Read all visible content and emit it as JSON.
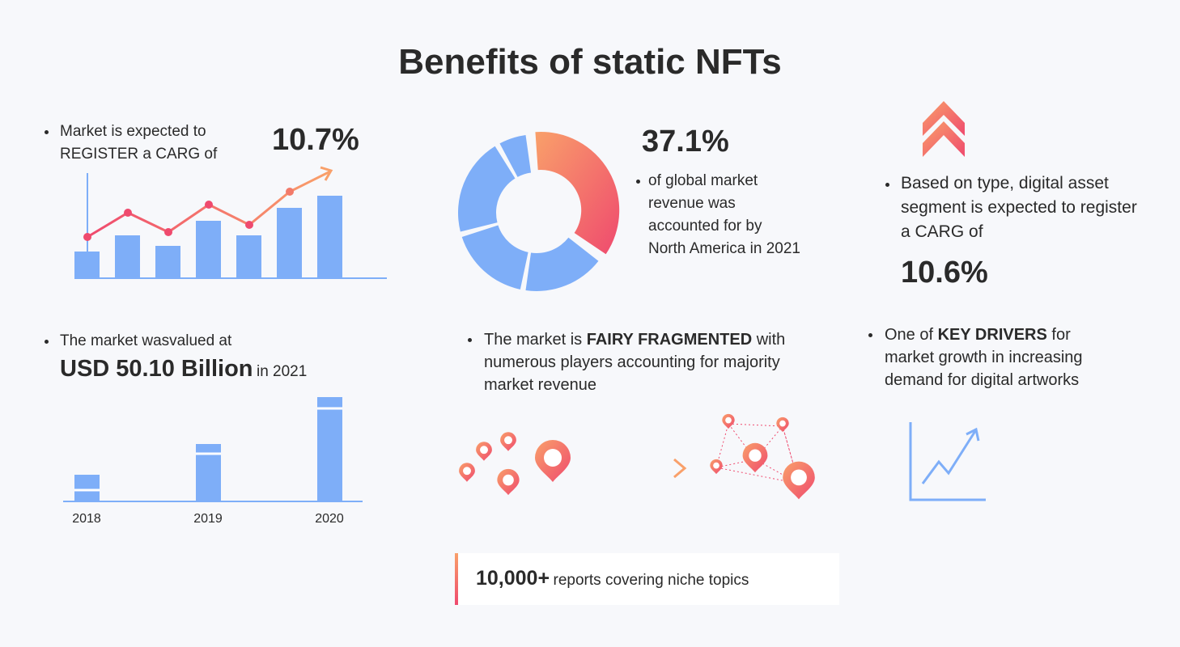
{
  "title": "Benefits of static NFTs",
  "market_carg": {
    "text": "Market is expected to REGISTER a CARG of",
    "value": "10.7%"
  },
  "north_america": {
    "value": "37.1%",
    "text": "of global market revenue was accounted for by North America in 2021"
  },
  "digital_asset": {
    "text": "Based on type, digital asset segment is expected to register a CARG of",
    "value": "10.6%"
  },
  "market_value": {
    "text": "The market wasvalued at",
    "value": "USD 50.10 Billion",
    "suffix": "in 2021",
    "years": [
      "2018",
      "2019",
      "2020"
    ]
  },
  "fragmented": {
    "before": "The market is",
    "emphasis": "FAIRY FRAGMENTED",
    "after": "with numerous players accounting for majority market revenue"
  },
  "drivers": {
    "before": "One of",
    "emphasis": "KEY DRIVERS",
    "after": "for market growth in increasing demand for digital artworks"
  },
  "footer": {
    "number": "10,000+",
    "text": "reports covering niche topics"
  }
}
